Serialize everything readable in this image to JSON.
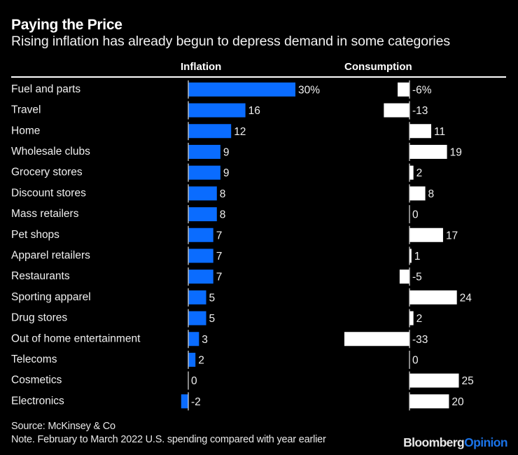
{
  "colors": {
    "inflation": "#0a6cff",
    "consumption": "#ffffff",
    "axis": "#d0d0d0",
    "background": "#000000",
    "brand_accent": "#1a73e8"
  },
  "chart_data": {
    "type": "bar",
    "title": "Paying the Price",
    "subtitle": "Rising inflation has already begun to depress demand in some categories",
    "categories": [
      "Fuel and parts",
      "Travel",
      "Home",
      "Wholesale clubs",
      "Grocery stores",
      "Discount stores",
      "Mass retailers",
      "Pet shops",
      "Apparel retailers",
      "Restaurants",
      "Sporting apparel",
      "Drug stores",
      "Out of home entertainment",
      "Telecoms",
      "Cosmetics",
      "Electronics"
    ],
    "series": [
      {
        "name": "Inflation",
        "unit": "%",
        "values": [
          30,
          16,
          12,
          9,
          9,
          8,
          8,
          7,
          7,
          7,
          5,
          5,
          3,
          2,
          0,
          -2
        ],
        "labels": [
          "30%",
          "16",
          "12",
          "9",
          "9",
          "8",
          "8",
          "7",
          "7",
          "7",
          "5",
          "5",
          "3",
          "2",
          "0",
          "-2"
        ]
      },
      {
        "name": "Consumption",
        "unit": "%",
        "values": [
          -6,
          -13,
          11,
          19,
          2,
          8,
          0,
          17,
          1,
          -5,
          24,
          2,
          -33,
          0,
          25,
          20
        ],
        "labels": [
          "-6%",
          "-13",
          "11",
          "19",
          "2",
          "8",
          "0",
          "17",
          "1",
          "-5",
          "24",
          "2",
          "-33",
          "0",
          "25",
          "20"
        ]
      }
    ],
    "orientation": "horizontal",
    "layout": "side-by-side panels",
    "grid": false,
    "legend": "none (column headers)"
  },
  "footer": {
    "source": "Source: McKinsey & Co",
    "note": "Note. February to March 2022 U.S. spending compared with year earlier"
  },
  "brand": {
    "part1": "Bloomberg",
    "part2": "Opinion"
  }
}
